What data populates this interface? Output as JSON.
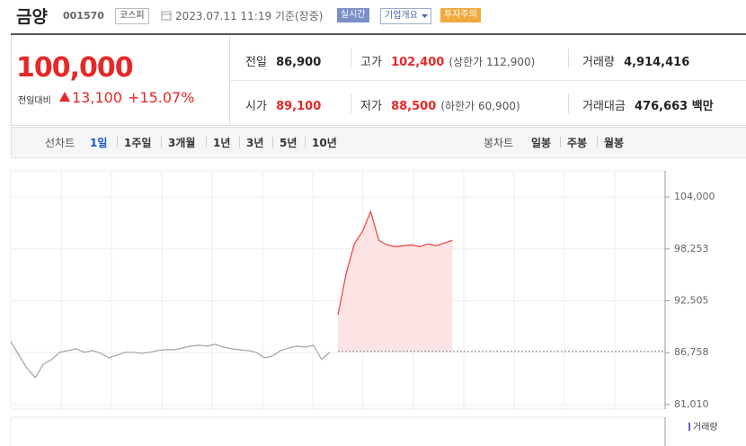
{
  "header": {
    "name": "금양",
    "code": "001570",
    "market": "코스피",
    "time": "2023.07.11 11:19 기준(장중)",
    "buttons": [
      "실시간",
      "기업개요",
      "투자주의"
    ]
  },
  "quote": {
    "price": "100,000",
    "change_label": "전일대비",
    "change": "13,100",
    "change_rate": "+15.07%"
  },
  "stats": [
    {
      "label": "전일",
      "value": "86,900"
    },
    {
      "label": "고가",
      "value": "102,400",
      "limit": "(상한가 112,900)"
    },
    {
      "label": "거래량",
      "value": "4,914,416"
    },
    {
      "label": "시가",
      "value": "89,100"
    },
    {
      "label": "저가",
      "value": "88,500",
      "limit": "(하한가 60,900)"
    },
    {
      "label": "거래대금",
      "value": "476,663 백만"
    }
  ],
  "tabs": {
    "line_label": "선차트",
    "periods": [
      "1일",
      "1주일",
      "3개월",
      "1년",
      "3년",
      "5년",
      "10년"
    ],
    "candle_label": "봉차트",
    "candles": [
      "일봉",
      "주봉",
      "월봉"
    ]
  },
  "chart_data": {
    "type": "line",
    "ylim": [
      80500,
      106900
    ],
    "yticks": [
      {
        "value": 104000,
        "label": "104,000"
      },
      {
        "value": 98253,
        "label": "98,253"
      },
      {
        "value": 92505,
        "label": "92,505"
      },
      {
        "value": 86758,
        "label": "86,758"
      },
      {
        "value": 81010,
        "label": "81,010"
      }
    ],
    "grid": true,
    "baseline": 86900,
    "volume_label": "거래량",
    "series": [
      {
        "color": "#aaaaaa",
        "values": [
          87980,
          86490,
          85000,
          84000,
          85500,
          86000,
          86800,
          86990,
          87180,
          86800,
          86990,
          86690,
          86190,
          86490,
          86800,
          86800,
          86690,
          86800,
          86990,
          87080,
          87080,
          87280,
          87480,
          87580,
          87480,
          87680,
          87380,
          87180,
          87080,
          86990,
          86800,
          86190,
          86390,
          86990,
          87280,
          87480,
          87380,
          87580,
          86000,
          86800,
          null,
          null,
          null,
          null,
          null,
          null,
          null,
          null,
          null,
          null,
          null,
          null,
          null,
          null,
          null,
          null,
          null,
          null,
          null,
          null,
          null,
          null,
          null,
          null,
          null,
          null,
          null,
          null,
          null,
          null,
          null,
          null,
          null,
          null,
          null,
          null,
          null,
          null,
          null,
          null
        ]
      },
      {
        "color": "#f04a4a",
        "values": [
          null,
          null,
          null,
          null,
          null,
          null,
          null,
          null,
          null,
          null,
          null,
          null,
          null,
          null,
          null,
          null,
          null,
          null,
          null,
          null,
          null,
          null,
          null,
          null,
          null,
          null,
          null,
          null,
          null,
          null,
          null,
          null,
          null,
          null,
          null,
          null,
          null,
          null,
          null,
          null,
          90960,
          95500,
          98800,
          100200,
          102400,
          99200,
          98700,
          98500,
          98600,
          98700,
          98500,
          98800,
          98600,
          98900,
          99200,
          null,
          null,
          null,
          null,
          null,
          null,
          null,
          null,
          null,
          null,
          null,
          null,
          null,
          null,
          null,
          null,
          null,
          null,
          null,
          null,
          null,
          null,
          null,
          null,
          null
        ]
      }
    ]
  }
}
